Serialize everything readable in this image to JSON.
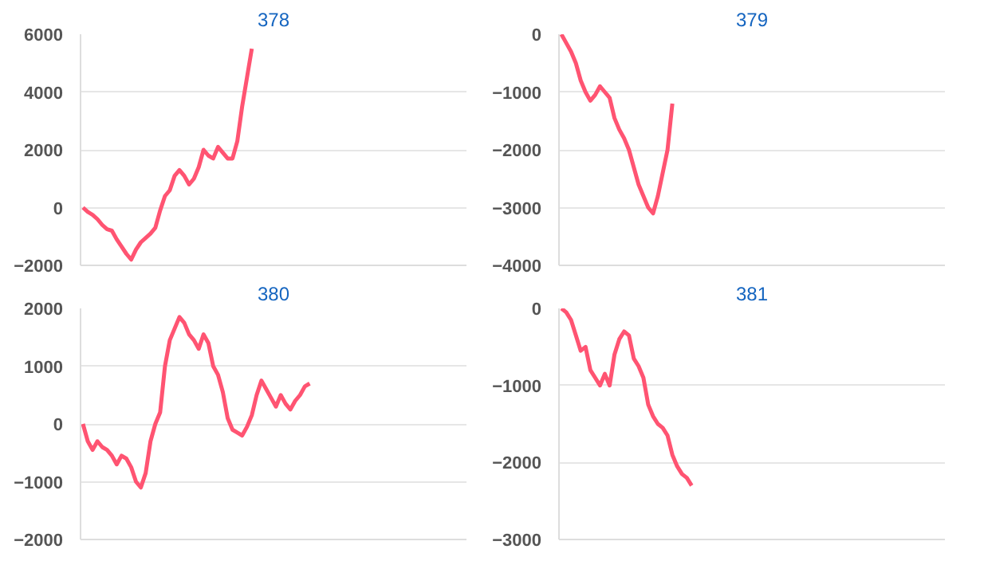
{
  "chart_data": [
    {
      "type": "line",
      "title": "378",
      "categories": [
        null,
        null,
        null,
        null,
        null,
        null,
        null,
        null,
        null,
        null,
        null,
        null,
        null,
        null,
        null,
        null,
        null,
        null,
        null,
        null,
        null,
        null,
        null,
        null,
        null,
        null,
        null,
        null,
        null,
        null,
        null,
        null,
        null,
        null,
        null,
        null,
        null,
        null,
        null,
        null,
        null,
        null,
        null,
        null,
        null,
        null,
        null,
        null,
        null,
        null,
        null,
        null,
        null,
        null,
        null,
        null,
        null,
        null,
        null,
        null,
        null,
        null,
        null,
        null,
        null,
        null,
        null,
        null,
        null,
        null,
        null,
        null,
        null,
        null,
        null,
        null,
        null,
        null,
        null,
        null
      ],
      "series": [
        {
          "color": "#ff5472",
          "values": [
            0,
            -150,
            -250,
            -400,
            -600,
            -750,
            -800,
            -1100,
            -1350,
            -1600,
            -1800,
            -1450,
            -1200,
            -1050,
            -900,
            -700,
            -100,
            400,
            600,
            1100,
            1300,
            1100,
            800,
            1000,
            1400,
            2000,
            1800,
            1700,
            2100,
            1900,
            1700,
            1700,
            2300,
            3500,
            4500,
            5500,
            null,
            null,
            null,
            null,
            null,
            null,
            null,
            null,
            null,
            null,
            null,
            null,
            null,
            null,
            null,
            null,
            null,
            null,
            null,
            null,
            null,
            null,
            null,
            null,
            null,
            null,
            null,
            null,
            null,
            null,
            null,
            null,
            null,
            null,
            null,
            null,
            null,
            null,
            null,
            null,
            null,
            null,
            null,
            null
          ]
        }
      ],
      "ylim": [
        -2000,
        6000
      ],
      "yticks": [
        -2000,
        0,
        2000,
        4000,
        6000
      ],
      "grid": "y",
      "tick_labels": "y"
    },
    {
      "type": "line",
      "title": "379",
      "categories": [
        null,
        null,
        null,
        null,
        null,
        null,
        null,
        null,
        null,
        null,
        null,
        null,
        null,
        null,
        null,
        null,
        null,
        null,
        null,
        null,
        null,
        null,
        null,
        null,
        null,
        null,
        null,
        null,
        null,
        null,
        null,
        null,
        null,
        null,
        null,
        null,
        null,
        null,
        null,
        null,
        null,
        null,
        null,
        null,
        null,
        null,
        null,
        null,
        null,
        null,
        null,
        null,
        null,
        null,
        null,
        null,
        null,
        null,
        null,
        null,
        null,
        null,
        null,
        null,
        null,
        null,
        null,
        null,
        null,
        null,
        null,
        null,
        null,
        null,
        null,
        null,
        null,
        null,
        null,
        null
      ],
      "series": [
        {
          "color": "#ff5472",
          "values": [
            0,
            -150,
            -300,
            -500,
            -800,
            -1000,
            -1150,
            -1050,
            -900,
            -1000,
            -1100,
            -1450,
            -1650,
            -1800,
            -2000,
            -2300,
            -2600,
            -2800,
            -3000,
            -3100,
            -2800,
            -2400,
            -2000,
            -1200,
            null,
            null,
            null,
            null,
            null,
            null,
            null,
            null,
            null,
            null,
            null,
            null,
            null,
            null,
            null,
            null,
            null,
            null,
            null,
            null,
            null,
            null,
            null,
            null,
            null,
            null,
            null,
            null,
            null,
            null,
            null,
            null,
            null,
            null,
            null,
            null,
            null,
            null,
            null,
            null,
            null,
            null,
            null,
            null,
            null,
            null,
            null,
            null,
            null,
            null,
            null,
            null,
            null,
            null,
            null,
            null
          ]
        }
      ],
      "ylim": [
        -4000,
        0
      ],
      "yticks": [
        -4000,
        -3000,
        -2000,
        -1000,
        0
      ],
      "grid": "y",
      "tick_labels": "y"
    },
    {
      "type": "line",
      "title": "380",
      "categories": [
        null,
        null,
        null,
        null,
        null,
        null,
        null,
        null,
        null,
        null,
        null,
        null,
        null,
        null,
        null,
        null,
        null,
        null,
        null,
        null,
        null,
        null,
        null,
        null,
        null,
        null,
        null,
        null,
        null,
        null,
        null,
        null,
        null,
        null,
        null,
        null,
        null,
        null,
        null,
        null,
        null,
        null,
        null,
        null,
        null,
        null,
        null,
        null,
        null,
        null,
        null,
        null,
        null,
        null,
        null,
        null,
        null,
        null,
        null,
        null,
        null,
        null,
        null,
        null,
        null,
        null,
        null,
        null,
        null,
        null,
        null,
        null,
        null,
        null,
        null,
        null,
        null,
        null,
        null,
        null
      ],
      "series": [
        {
          "color": "#ff5472",
          "values": [
            0,
            -300,
            -450,
            -300,
            -400,
            -450,
            -550,
            -700,
            -550,
            -600,
            -750,
            -1000,
            -1100,
            -850,
            -300,
            0,
            200,
            1000,
            1450,
            1650,
            1850,
            1750,
            1550,
            1450,
            1300,
            1550,
            1400,
            1000,
            850,
            550,
            100,
            -100,
            -150,
            -200,
            -50,
            150,
            500,
            750,
            600,
            450,
            300,
            500,
            350,
            250,
            400,
            500,
            650,
            700,
            null,
            null,
            null,
            null,
            null,
            null,
            null,
            null,
            null,
            null,
            null,
            null,
            null,
            null,
            null,
            null,
            null,
            null,
            null,
            null,
            null,
            null,
            null,
            null,
            null,
            null,
            null,
            null,
            null,
            null,
            null,
            null
          ]
        }
      ],
      "ylim": [
        -2000,
        2000
      ],
      "yticks": [
        -2000,
        -1000,
        0,
        1000,
        2000
      ],
      "grid": "y",
      "tick_labels": "y"
    },
    {
      "type": "line",
      "title": "381",
      "categories": [
        null,
        null,
        null,
        null,
        null,
        null,
        null,
        null,
        null,
        null,
        null,
        null,
        null,
        null,
        null,
        null,
        null,
        null,
        null,
        null,
        null,
        null,
        null,
        null,
        null,
        null,
        null,
        null,
        null,
        null,
        null,
        null,
        null,
        null,
        null,
        null,
        null,
        null,
        null,
        null,
        null,
        null,
        null,
        null,
        null,
        null,
        null,
        null,
        null,
        null,
        null,
        null,
        null,
        null,
        null,
        null,
        null,
        null,
        null,
        null,
        null,
        null,
        null,
        null,
        null,
        null,
        null,
        null,
        null,
        null,
        null,
        null,
        null,
        null,
        null,
        null,
        null,
        null,
        null,
        null
      ],
      "series": [
        {
          "color": "#ff5472",
          "values": [
            0,
            -50,
            -150,
            -350,
            -550,
            -500,
            -800,
            -900,
            -1000,
            -850,
            -1000,
            -600,
            -400,
            -300,
            -350,
            -650,
            -750,
            -900,
            -1250,
            -1400,
            -1500,
            -1550,
            -1650,
            -1900,
            -2050,
            -2150,
            -2200,
            -2300,
            null,
            null,
            null,
            null,
            null,
            null,
            null,
            null,
            null,
            null,
            null,
            null,
            null,
            null,
            null,
            null,
            null,
            null,
            null,
            null,
            null,
            null,
            null,
            null,
            null,
            null,
            null,
            null,
            null,
            null,
            null,
            null,
            null,
            null,
            null,
            null,
            null,
            null,
            null,
            null,
            null,
            null,
            null,
            null,
            null,
            null,
            null,
            null,
            null,
            null,
            null,
            null
          ]
        }
      ],
      "ylim": [
        -3000,
        0
      ],
      "yticks": [
        -3000,
        -2000,
        -1000,
        0
      ],
      "grid": "y",
      "tick_labels": "y"
    }
  ]
}
